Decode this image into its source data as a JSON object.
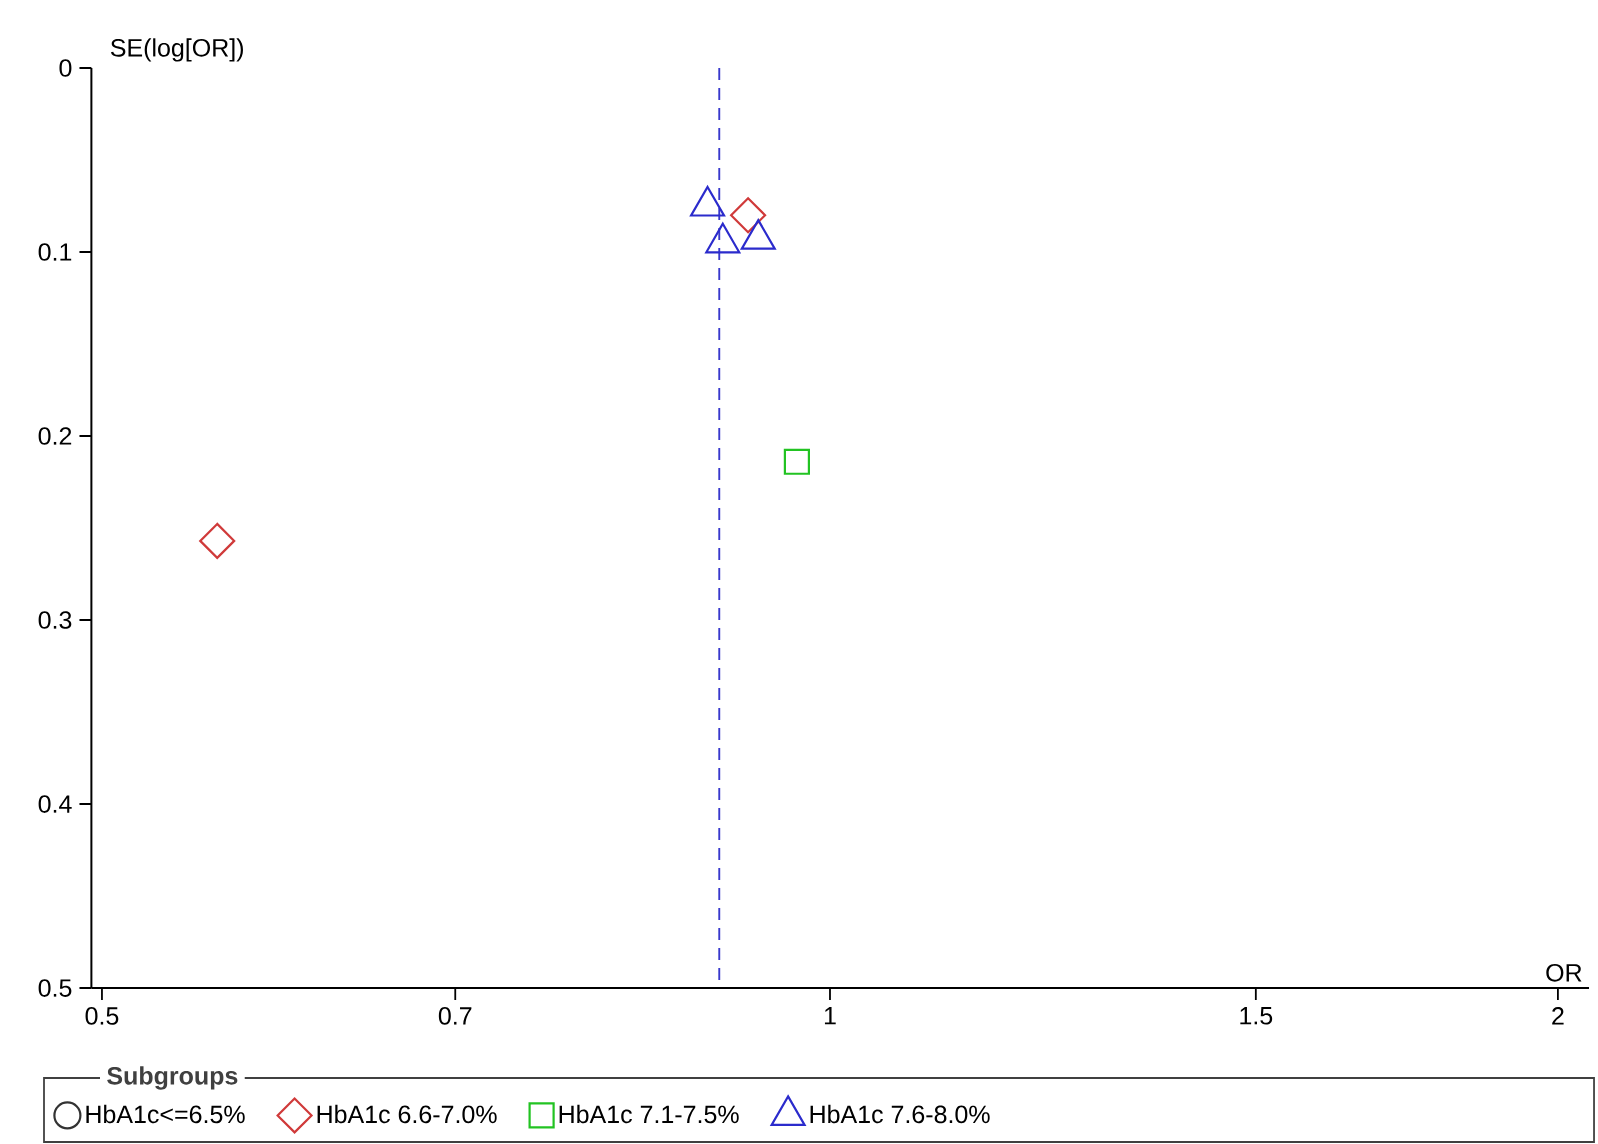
{
  "chart_data": {
    "type": "scatter",
    "xlabel": "OR",
    "ylabel": "SE(log[OR])",
    "legend_title": "Subgroups",
    "log": "x",
    "xlim": [
      0.495,
      2.06
    ],
    "xticks": [
      0.5,
      0.7,
      1,
      1.5,
      2
    ],
    "ylim": [
      0.5,
      0
    ],
    "yticks": [
      0,
      0.1,
      0.2,
      0.3,
      0.4,
      0.5
    ],
    "ref_lines": [
      {
        "axis": "x",
        "value": 0.9,
        "color": "#3838cc",
        "line_style": "dashed"
      }
    ],
    "legend": "bottom",
    "series": [
      {
        "name": "HbA1c<=6.5%",
        "color": "#333333",
        "marker": "circle"
      },
      {
        "name": "HbA1c 6.6-7.0%",
        "color": "#d03a3a",
        "marker": "diamond",
        "x": [
          0.558,
          0.925
        ],
        "values": [
          0.257,
          0.08
        ]
      },
      {
        "name": "HbA1c 7.1-7.5%",
        "color": "#22c322",
        "marker": "square",
        "x": [
          0.969
        ],
        "values": [
          0.214
        ]
      },
      {
        "name": "HbA1c 7.6-8.0%",
        "color": "#2b2bcc",
        "marker": "triangle",
        "x": [
          0.89,
          0.903,
          0.934
        ],
        "values": [
          0.075,
          0.095,
          0.093
        ]
      }
    ]
  }
}
